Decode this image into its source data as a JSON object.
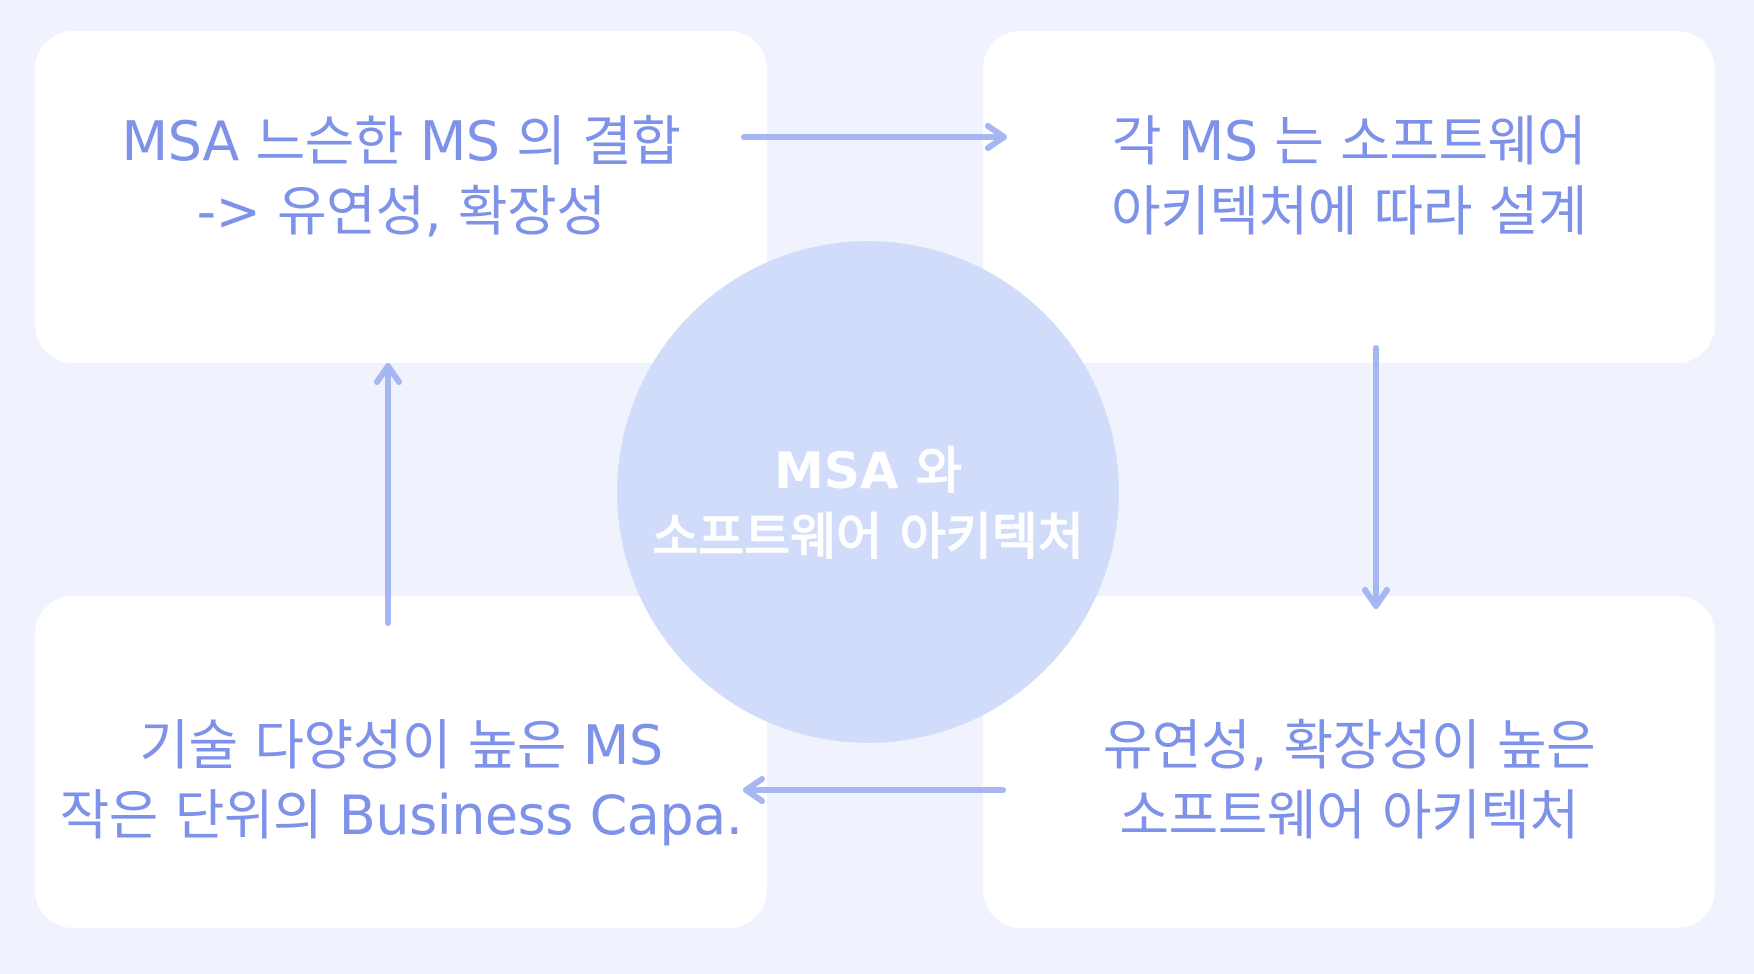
{
  "center": {
    "line1": "MSA 와",
    "line2": "소프트웨어 아키텍처"
  },
  "cards": {
    "top_left": {
      "line1": "MSA 느슨한 MS 의 결합",
      "line2": "-> 유연성, 확장성"
    },
    "top_right": {
      "line1": "각 MS 는 소프트웨어",
      "line2": "아키텍처에 따라 설계"
    },
    "bottom_right": {
      "line1": "유연성, 확장성이 높은",
      "line2": "소프트웨어 아키텍처"
    },
    "bottom_left": {
      "line1": "기술 다양성이 높은 MS",
      "line2": "작은 단위의 Business Capa."
    }
  },
  "colors": {
    "background": "#f0f3fd",
    "card": "#ffffff",
    "text": "#7e92ea",
    "circle": "#d1dcfa",
    "arrow": "#a6b6f2"
  }
}
